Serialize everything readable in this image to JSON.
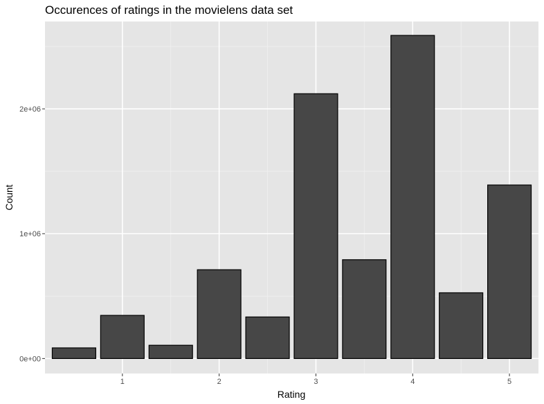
{
  "chart_data": {
    "type": "bar",
    "title": "Occurences of ratings in the movielens data set",
    "xlabel": "Rating",
    "ylabel": "Count",
    "x": [
      0.5,
      1,
      1.5,
      2,
      2.5,
      3,
      3.5,
      4,
      4.5,
      5
    ],
    "values": [
      85374,
      345679,
      106426,
      711422,
      333010,
      2121240,
      791624,
      2588430,
      526736,
      1390114
    ],
    "xlim": [
      0.2,
      5.3
    ],
    "ylim": [
      -120000,
      2700000
    ],
    "x_ticks": [
      {
        "value": 1,
        "label": "1"
      },
      {
        "value": 2,
        "label": "2"
      },
      {
        "value": 3,
        "label": "3"
      },
      {
        "value": 4,
        "label": "4"
      },
      {
        "value": 5,
        "label": "5"
      }
    ],
    "y_ticks": [
      {
        "value": 0,
        "label": "0e+00"
      },
      {
        "value": 1000000,
        "label": "1e+06"
      },
      {
        "value": 2000000,
        "label": "2e+06"
      }
    ],
    "bar_width": 0.45,
    "grid": true,
    "colors": {
      "panel": "#e5e5e5",
      "grid_major": "#ffffff",
      "grid_minor": "#f0f0f0",
      "bar_fill": "#474747",
      "bar_stroke": "#000000"
    }
  }
}
